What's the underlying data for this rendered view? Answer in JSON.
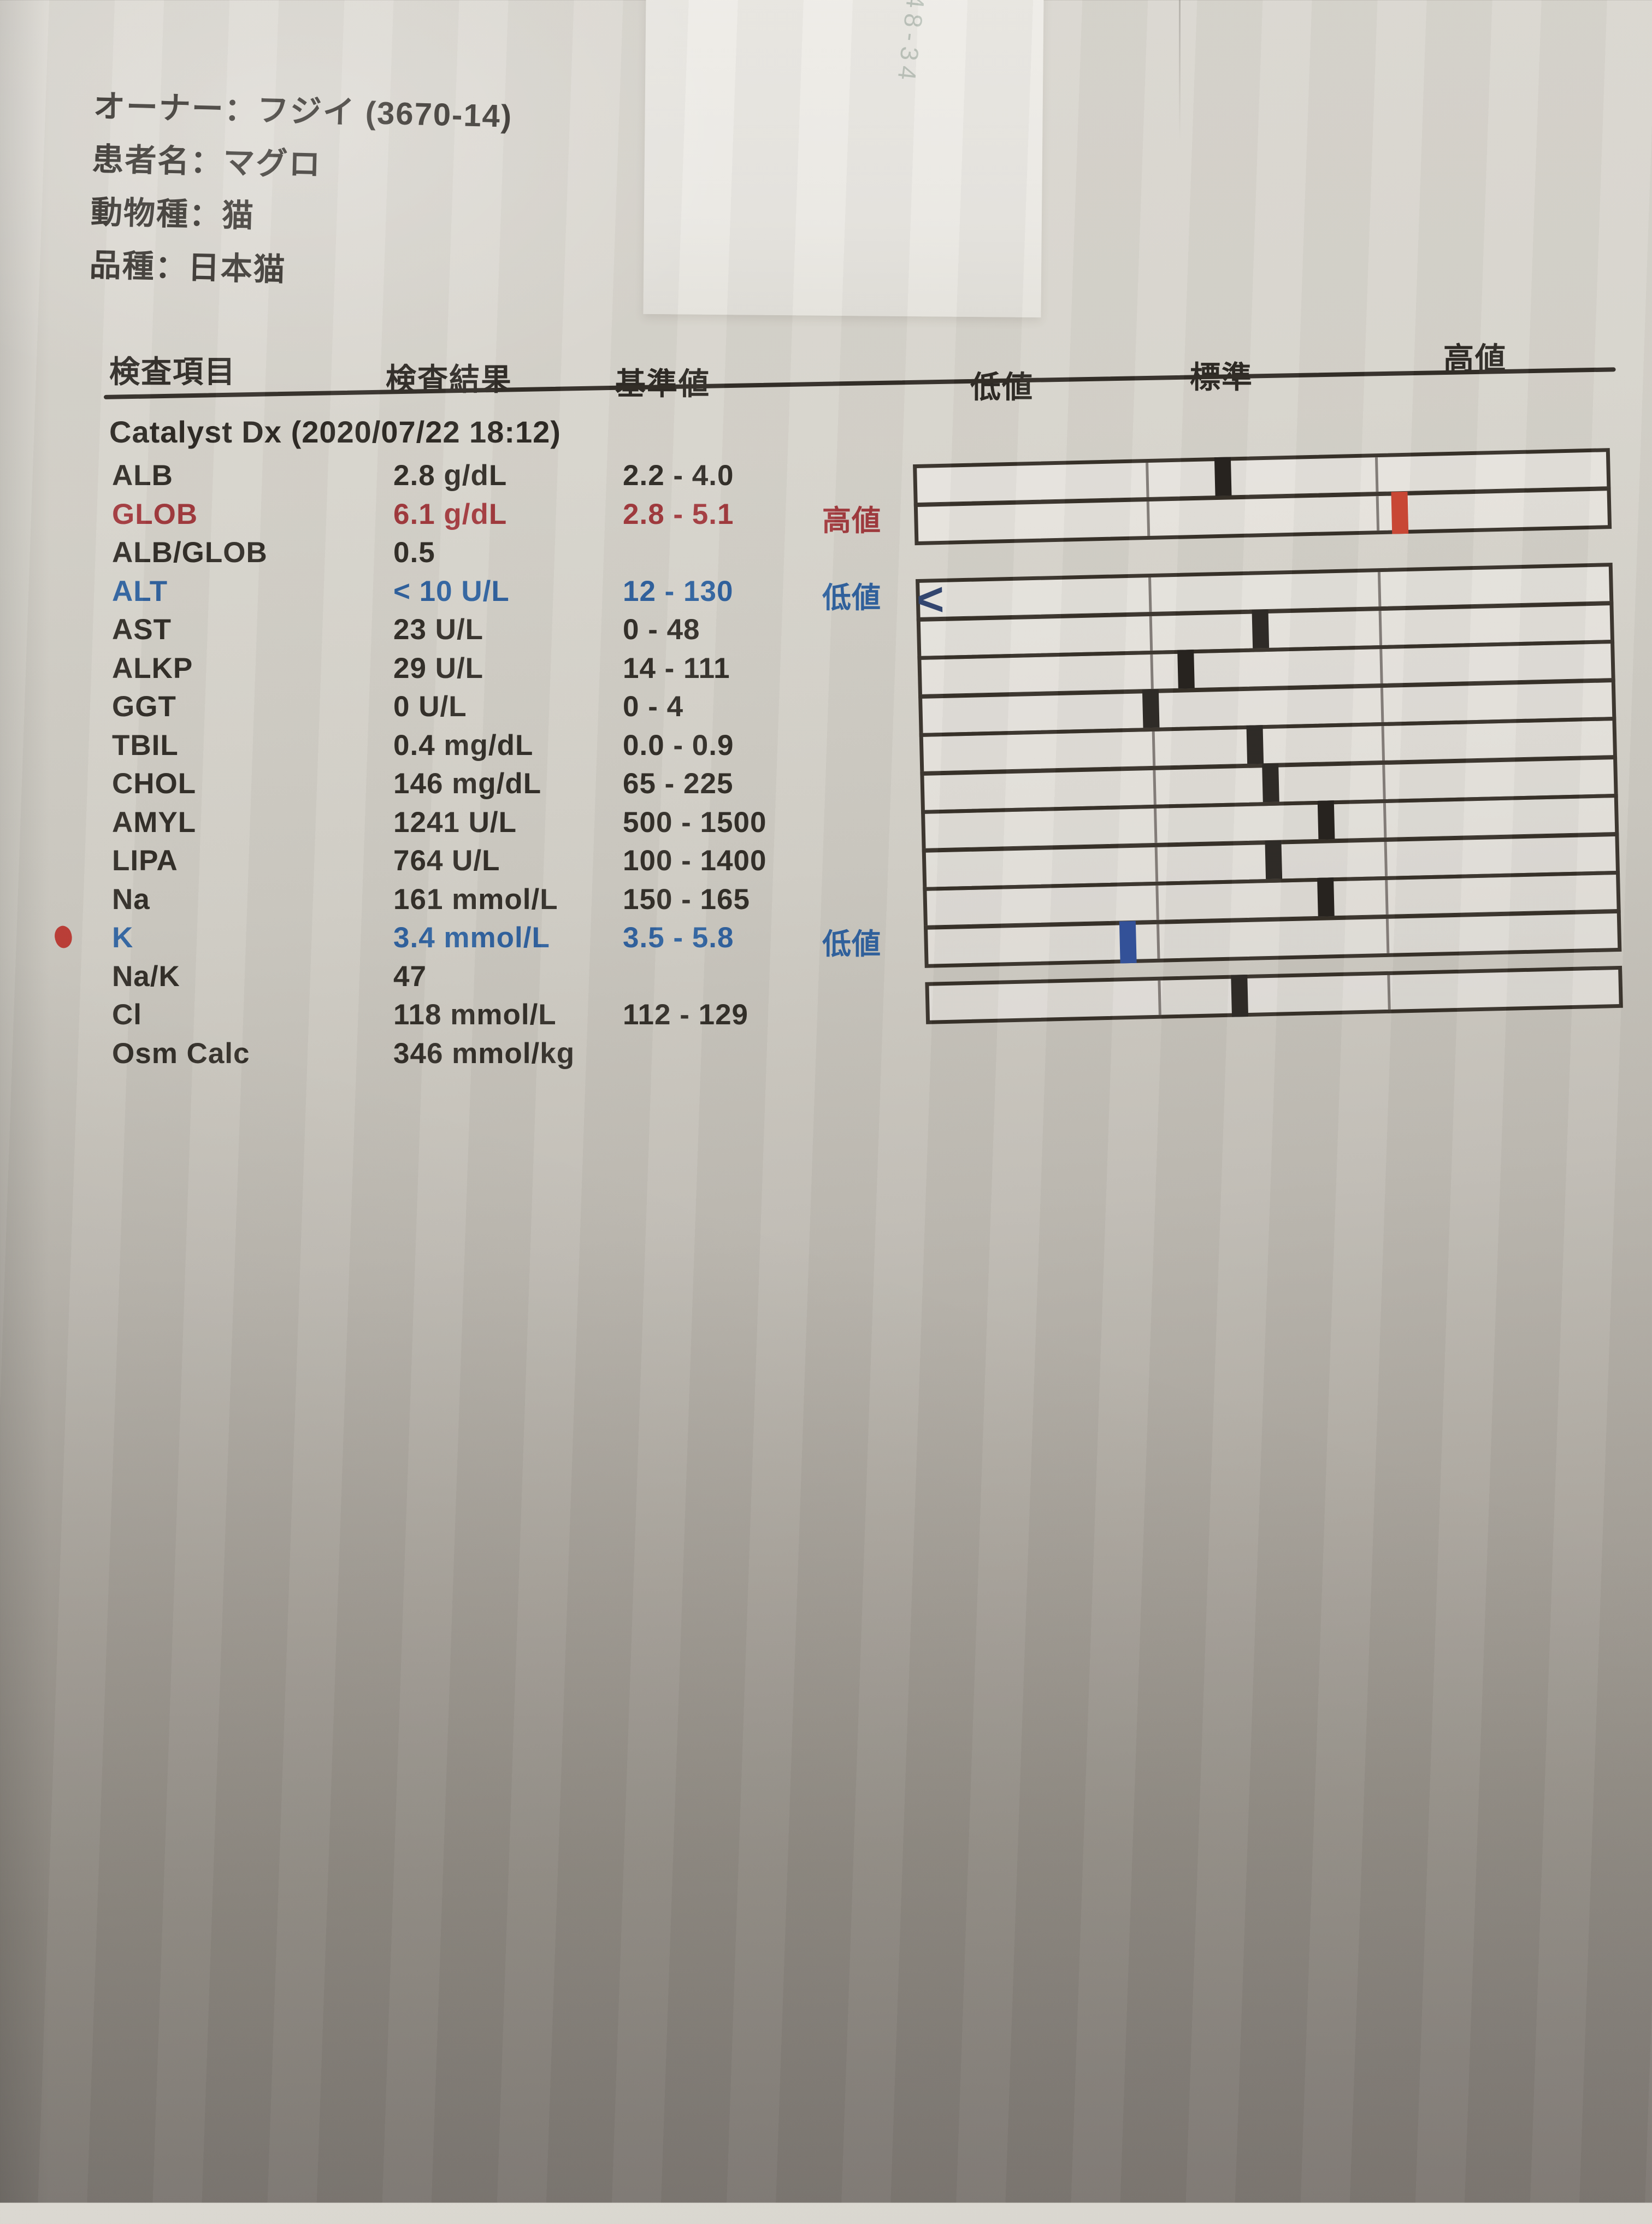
{
  "page": {
    "handwriting_note": "48-34"
  },
  "glyphs": {
    "below_scale": "<"
  },
  "patient_info": {
    "separator": "：",
    "fields": [
      {
        "label": "オーナー",
        "value": "フジイ (3670-14)"
      },
      {
        "label": "患者名",
        "value": "マグロ"
      },
      {
        "label": "動物種",
        "value": "猫"
      },
      {
        "label": "品種",
        "value": "日本猫"
      }
    ]
  },
  "table": {
    "columns": {
      "item": "検査項目",
      "result": "検査結果",
      "reference": "基準値",
      "low": "低値",
      "normal": "標準",
      "high": "高値"
    },
    "section_title": "Catalyst Dx (2020/07/22 18:12)",
    "rows": [
      {
        "name": "ALB",
        "result": "2.8 g/dL",
        "reference": "2.2 - 4.0",
        "flag": "",
        "status": "normal",
        "bar": {
          "group": 1,
          "value": 2.8,
          "min": 2.2,
          "max": 4.0,
          "marker": "normal"
        }
      },
      {
        "name": "GLOB",
        "result": "6.1 g/dL",
        "reference": "2.8 - 5.1",
        "flag": "高値",
        "status": "high",
        "bar": {
          "group": 1,
          "value": 6.1,
          "min": 2.8,
          "max": 5.1,
          "marker": "high"
        }
      },
      {
        "name": "ALB/GLOB",
        "result": "0.5",
        "reference": "",
        "flag": "",
        "status": "normal",
        "bar": null
      },
      {
        "name": "ALT",
        "result": "< 10 U/L",
        "reference": "12 - 130",
        "flag": "低値",
        "status": "low",
        "bar": {
          "group": 2,
          "value": 10,
          "min": 12,
          "max": 130,
          "marker": "below-scale"
        }
      },
      {
        "name": "AST",
        "result": "23 U/L",
        "reference": "0 - 48",
        "flag": "",
        "status": "normal",
        "bar": {
          "group": 2,
          "value": 23,
          "min": 0,
          "max": 48,
          "marker": "normal"
        }
      },
      {
        "name": "ALKP",
        "result": "29 U/L",
        "reference": "14 - 111",
        "flag": "",
        "status": "normal",
        "bar": {
          "group": 2,
          "value": 29,
          "min": 14,
          "max": 111,
          "marker": "normal"
        }
      },
      {
        "name": "GGT",
        "result": "0 U/L",
        "reference": "0 - 4",
        "flag": "",
        "status": "normal",
        "bar": {
          "group": 2,
          "value": 0,
          "min": 0,
          "max": 4,
          "marker": "normal"
        }
      },
      {
        "name": "TBIL",
        "result": "0.4 mg/dL",
        "reference": "0.0 - 0.9",
        "flag": "",
        "status": "normal",
        "bar": {
          "group": 2,
          "value": 0.4,
          "min": 0.0,
          "max": 0.9,
          "marker": "normal"
        }
      },
      {
        "name": "CHOL",
        "result": "146 mg/dL",
        "reference": "65 - 225",
        "flag": "",
        "status": "normal",
        "bar": {
          "group": 2,
          "value": 146,
          "min": 65,
          "max": 225,
          "marker": "normal"
        }
      },
      {
        "name": "AMYL",
        "result": "1241 U/L",
        "reference": "500 - 1500",
        "flag": "",
        "status": "normal",
        "bar": {
          "group": 2,
          "value": 1241,
          "min": 500,
          "max": 1500,
          "marker": "normal"
        }
      },
      {
        "name": "LIPA",
        "result": "764 U/L",
        "reference": "100 - 1400",
        "flag": "",
        "status": "normal",
        "bar": {
          "group": 2,
          "value": 764,
          "min": 100,
          "max": 1400,
          "marker": "normal"
        }
      },
      {
        "name": "Na",
        "result": "161 mmol/L",
        "reference": "150 - 165",
        "flag": "",
        "status": "normal",
        "bar": {
          "group": 2,
          "value": 161,
          "min": 150,
          "max": 165,
          "marker": "normal"
        }
      },
      {
        "name": "K",
        "result": "3.4 mmol/L",
        "reference": "3.5 - 5.8",
        "flag": "低値",
        "status": "low",
        "bar": {
          "group": 2,
          "value": 3.4,
          "min": 3.5,
          "max": 5.8,
          "marker": "low"
        }
      },
      {
        "name": "Na/K",
        "result": "47",
        "reference": "",
        "flag": "",
        "status": "normal",
        "bar": null
      },
      {
        "name": "Cl",
        "result": "118 mmol/L",
        "reference": "112 - 129",
        "flag": "",
        "status": "normal",
        "bar": {
          "group": 3,
          "value": 118,
          "min": 112,
          "max": 129,
          "marker": "normal"
        }
      },
      {
        "name": "Osm Calc",
        "result": "346 mmol/kg",
        "reference": "",
        "flag": "",
        "status": "normal",
        "bar": null
      }
    ]
  },
  "colors": {
    "text": "#2e2a25",
    "abnormal_high_text": "#a23a3e",
    "abnormal_low_text": "#30629f",
    "marker_normal": "#27231f",
    "marker_high": "#c6402e",
    "marker_low": "#2c4b94",
    "pen_dot": "#bd332c"
  }
}
